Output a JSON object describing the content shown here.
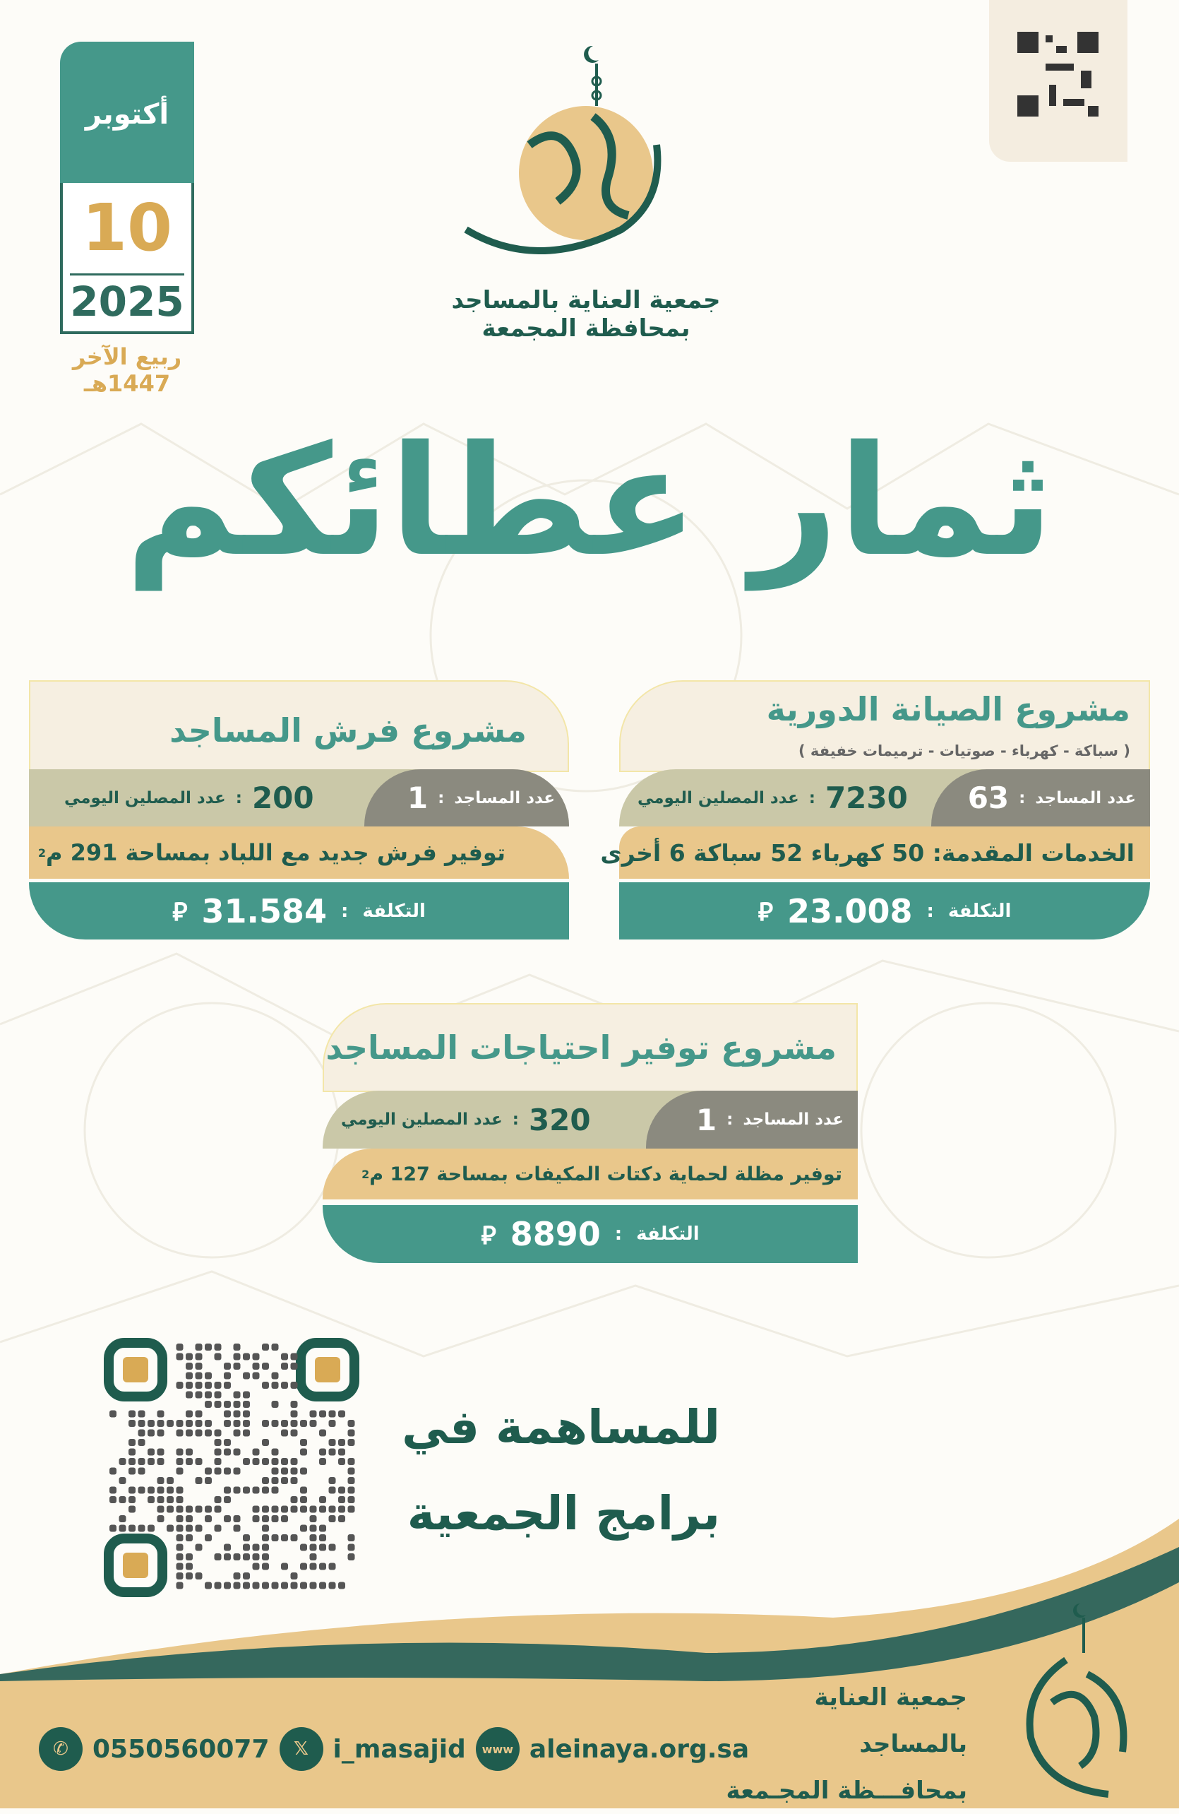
{
  "date": {
    "month": "أكتوبر",
    "day": "10",
    "year": "2025",
    "hijri": "ربيع الآخر 1447هـ"
  },
  "org": {
    "line1": "جمعية العناية بالمساجد",
    "line2": "بمحافظة المجمعة"
  },
  "headline": "ثمار عطائكم",
  "labels": {
    "mosques": "عدد المساجد",
    "worshippers": "عدد المصلين اليومي",
    "cost": "التكلفة",
    "currency": "⃁",
    "colon": ":"
  },
  "projects": [
    {
      "title": "مشروع الصيانة الدورية",
      "subtitle": "( سباكة - كهرباء - صوتيات - ترميمات خفيفة )",
      "mosques": "63",
      "worshippers": "7230",
      "detail": "الخدمات المقدمة: 50 كهرباء 52 سباكة 6 أخرى",
      "cost": "23.008"
    },
    {
      "title": "مشروع فرش المساجد",
      "mosques": "1",
      "worshippers": "200",
      "detail": "توفير فرش جديد مع اللباد بمساحة 291 م",
      "cost": "31.584"
    },
    {
      "title": "مشروع توفير احتياجات المساجد",
      "mosques": "1",
      "worshippers": "320",
      "detail": "توفير مظلة لحماية دكتات المكيفات بمساحة 127 م",
      "cost": "8890"
    }
  ],
  "contribute": {
    "line1": "للمساهمة في",
    "line2": "برامج الجمعية"
  },
  "footer": {
    "org_line1": "جمعية العناية بالمساجد",
    "org_line2": "بمحافـــظة المجـمعة",
    "phone": "0550560077",
    "twitter": "i_masajid",
    "website": "aleinaya.org.sa"
  },
  "colors": {
    "teal": "#45988a",
    "dark_green": "#1f5c4e",
    "gold": "#e9c78b",
    "gray": "#8b8a7f",
    "beige": "#cac8a8"
  }
}
